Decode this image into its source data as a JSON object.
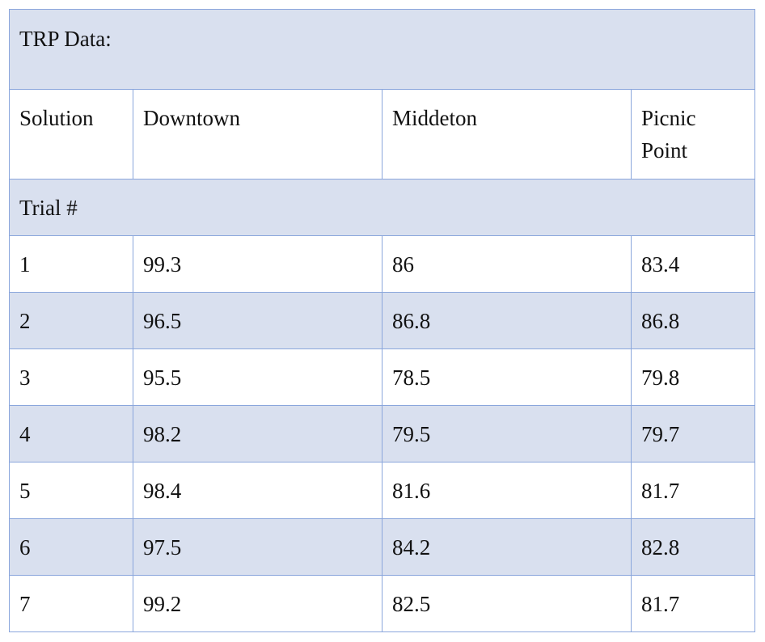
{
  "table": {
    "title": "TRP Data:",
    "headers": [
      "Solution",
      "Downtown",
      "Middeton",
      "Picnic Point"
    ],
    "subheader": "Trial #",
    "rows": [
      [
        "1",
        "99.3",
        "86",
        "83.4"
      ],
      [
        "2",
        "96.5",
        "86.8",
        "86.8"
      ],
      [
        "3",
        "95.5",
        "78.5",
        "79.8"
      ],
      [
        "4",
        "98.2",
        "79.5",
        "79.7"
      ],
      [
        "5",
        "98.4",
        "81.6",
        "81.7"
      ],
      [
        "6",
        "97.5",
        "84.2",
        "82.8"
      ],
      [
        "7",
        "99.2",
        "82.5",
        "81.7"
      ]
    ]
  }
}
